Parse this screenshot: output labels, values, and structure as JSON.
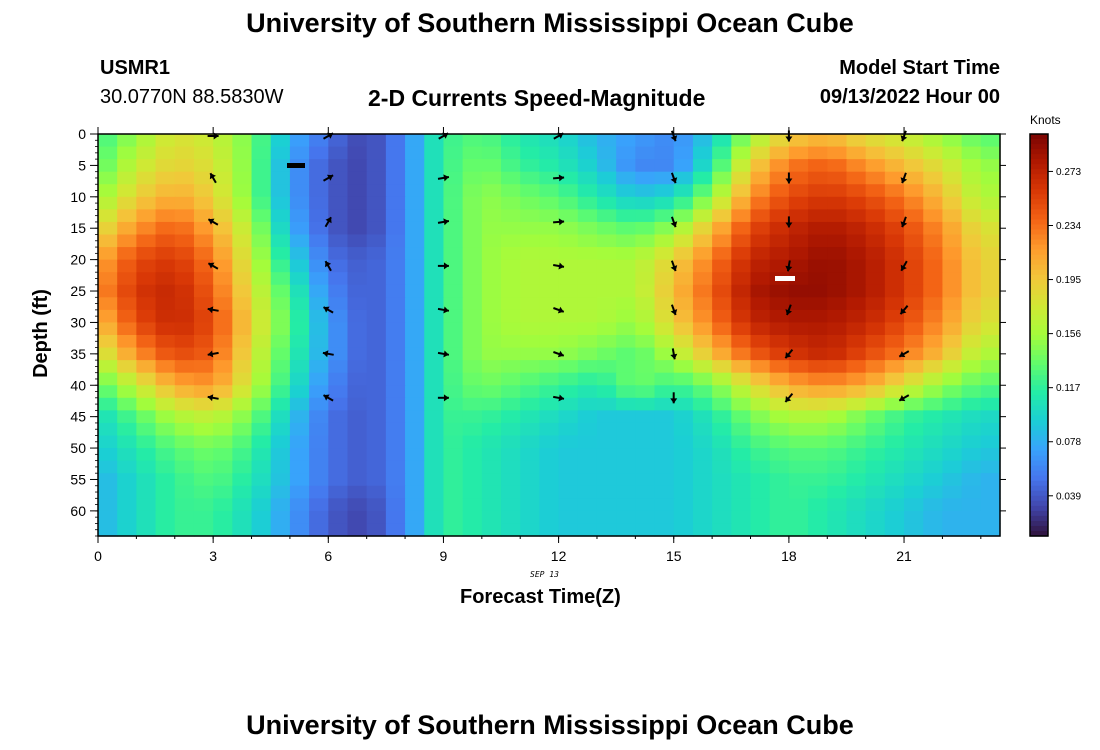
{
  "header": {
    "title": "University of Southern Mississippi Ocean Cube",
    "station_id": "USMR1",
    "location": "30.0770N  88.5830W",
    "plot_title": "2-D Currents Speed-Magnitude",
    "model_start_label": "Model Start Time",
    "model_start_value": "09/13/2022 Hour 00"
  },
  "footer": {
    "title_repeat": "University of Southern Mississippi Ocean Cube"
  },
  "chart_data": {
    "type": "heatmap",
    "xlabel": "Forecast Time(Z)",
    "ylabel": "Depth (ft)",
    "date_label": "SEP 13",
    "x_ticks": [
      "0",
      "3",
      "6",
      "9",
      "12",
      "15",
      "18",
      "21"
    ],
    "y_ticks": [
      "0",
      "5",
      "10",
      "15",
      "20",
      "25",
      "30",
      "35",
      "40",
      "45",
      "50",
      "55",
      "60"
    ],
    "xlim": [
      0,
      23.5
    ],
    "ylim": [
      0,
      64
    ],
    "colorbar": {
      "unit": "Knots",
      "ticks": [
        "0.273",
        "0.234",
        "0.195",
        "0.156",
        "0.117",
        "0.078",
        "0.039"
      ],
      "range": [
        0.01,
        0.3
      ],
      "colormap": [
        "#30123b",
        "#4145ab",
        "#4675ed",
        "#39a2fc",
        "#1bcfd4",
        "#24eca6",
        "#61fc6c",
        "#a4fc3b",
        "#d1e834",
        "#f3c63a",
        "#fe9b2d",
        "#f36315",
        "#d93806",
        "#b11901",
        "#7a0402"
      ]
    },
    "time_columns": [
      0,
      1,
      2,
      3,
      4,
      5,
      6,
      7,
      8,
      9,
      10,
      11,
      12,
      13,
      14,
      15,
      16,
      17,
      18,
      19,
      20,
      21,
      22,
      23
    ],
    "depth_rows": [
      0,
      5,
      10,
      15,
      20,
      25,
      30,
      35,
      40,
      45,
      50,
      55,
      60
    ],
    "speed_knots": [
      [
        0.12,
        0.15,
        0.18,
        0.17,
        0.14,
        0.08,
        0.05,
        0.03,
        0.06,
        0.12,
        0.13,
        0.11,
        0.1,
        0.08,
        0.07,
        0.06,
        0.09,
        0.15,
        0.19,
        0.2,
        0.18,
        0.17,
        0.15,
        0.13
      ],
      [
        0.13,
        0.17,
        0.19,
        0.18,
        0.14,
        0.07,
        0.04,
        0.03,
        0.06,
        0.12,
        0.14,
        0.12,
        0.11,
        0.09,
        0.06,
        0.06,
        0.11,
        0.19,
        0.23,
        0.24,
        0.22,
        0.2,
        0.18,
        0.15
      ],
      [
        0.15,
        0.19,
        0.21,
        0.19,
        0.14,
        0.07,
        0.04,
        0.03,
        0.06,
        0.12,
        0.15,
        0.14,
        0.13,
        0.11,
        0.09,
        0.1,
        0.15,
        0.22,
        0.25,
        0.26,
        0.25,
        0.23,
        0.2,
        0.16
      ],
      [
        0.18,
        0.22,
        0.24,
        0.21,
        0.16,
        0.08,
        0.04,
        0.03,
        0.06,
        0.12,
        0.15,
        0.15,
        0.15,
        0.14,
        0.13,
        0.15,
        0.2,
        0.25,
        0.27,
        0.28,
        0.27,
        0.25,
        0.22,
        0.18
      ],
      [
        0.21,
        0.25,
        0.26,
        0.23,
        0.17,
        0.1,
        0.05,
        0.04,
        0.06,
        0.12,
        0.15,
        0.16,
        0.16,
        0.16,
        0.16,
        0.19,
        0.23,
        0.27,
        0.28,
        0.29,
        0.28,
        0.26,
        0.23,
        0.19
      ],
      [
        0.22,
        0.26,
        0.27,
        0.24,
        0.18,
        0.12,
        0.06,
        0.04,
        0.06,
        0.12,
        0.15,
        0.16,
        0.16,
        0.16,
        0.16,
        0.2,
        0.24,
        0.28,
        0.29,
        0.29,
        0.28,
        0.26,
        0.23,
        0.19
      ],
      [
        0.2,
        0.25,
        0.27,
        0.25,
        0.19,
        0.13,
        0.07,
        0.04,
        0.06,
        0.12,
        0.15,
        0.16,
        0.16,
        0.16,
        0.15,
        0.19,
        0.23,
        0.27,
        0.28,
        0.28,
        0.27,
        0.25,
        0.22,
        0.18
      ],
      [
        0.17,
        0.22,
        0.25,
        0.24,
        0.18,
        0.12,
        0.07,
        0.04,
        0.06,
        0.12,
        0.15,
        0.15,
        0.15,
        0.14,
        0.13,
        0.16,
        0.2,
        0.24,
        0.26,
        0.27,
        0.25,
        0.23,
        0.2,
        0.16
      ],
      [
        0.13,
        0.17,
        0.21,
        0.22,
        0.17,
        0.11,
        0.06,
        0.04,
        0.06,
        0.12,
        0.14,
        0.13,
        0.12,
        0.11,
        0.14,
        0.12,
        0.14,
        0.18,
        0.21,
        0.22,
        0.21,
        0.18,
        0.15,
        0.13
      ],
      [
        0.1,
        0.13,
        0.16,
        0.17,
        0.14,
        0.09,
        0.05,
        0.04,
        0.06,
        0.12,
        0.12,
        0.11,
        0.1,
        0.09,
        0.09,
        0.09,
        0.11,
        0.14,
        0.16,
        0.16,
        0.14,
        0.12,
        0.11,
        0.1
      ],
      [
        0.09,
        0.11,
        0.13,
        0.14,
        0.12,
        0.08,
        0.05,
        0.04,
        0.06,
        0.12,
        0.11,
        0.1,
        0.09,
        0.09,
        0.09,
        0.09,
        0.1,
        0.12,
        0.13,
        0.13,
        0.12,
        0.11,
        0.1,
        0.09
      ],
      [
        0.08,
        0.1,
        0.12,
        0.13,
        0.11,
        0.08,
        0.05,
        0.04,
        0.06,
        0.12,
        0.11,
        0.1,
        0.09,
        0.09,
        0.09,
        0.09,
        0.1,
        0.11,
        0.12,
        0.12,
        0.11,
        0.1,
        0.09,
        0.08
      ],
      [
        0.08,
        0.1,
        0.12,
        0.12,
        0.1,
        0.07,
        0.04,
        0.03,
        0.06,
        0.12,
        0.11,
        0.1,
        0.09,
        0.09,
        0.09,
        0.09,
        0.1,
        0.11,
        0.12,
        0.11,
        0.1,
        0.09,
        0.08,
        0.08
      ]
    ],
    "vector_times": [
      3,
      6,
      9,
      12,
      15,
      18,
      21
    ],
    "vector_depths": [
      0,
      7,
      14,
      21,
      28,
      35,
      42
    ],
    "vector_angle_deg": [
      [
        90,
        60,
        60,
        60,
        160,
        180,
        200
      ],
      [
        330,
        60,
        80,
        85,
        160,
        180,
        200
      ],
      [
        300,
        30,
        80,
        85,
        160,
        180,
        200
      ],
      [
        300,
        330,
        90,
        100,
        160,
        190,
        210
      ],
      [
        280,
        300,
        100,
        110,
        160,
        200,
        220
      ],
      [
        260,
        280,
        100,
        110,
        170,
        220,
        240
      ],
      [
        280,
        300,
        90,
        100,
        180,
        220,
        240
      ]
    ]
  }
}
